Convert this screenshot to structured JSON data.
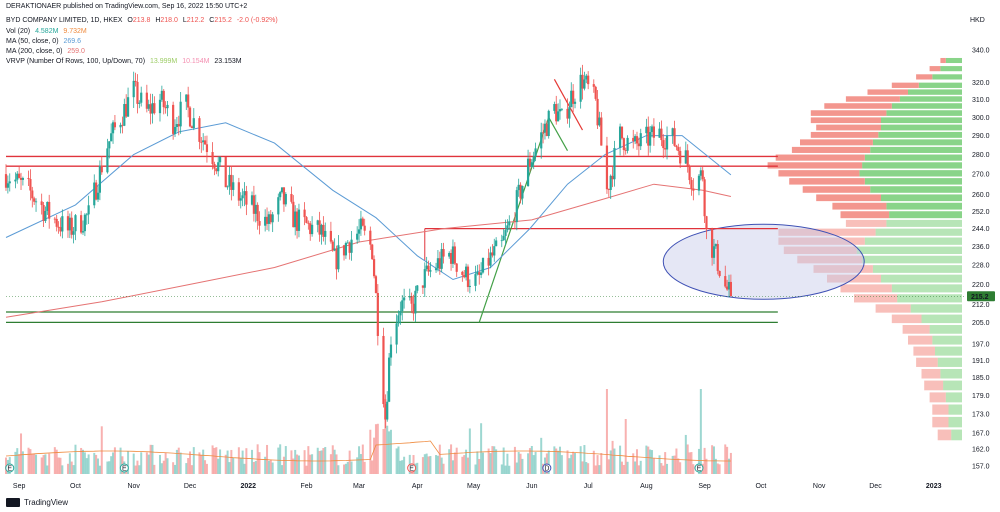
{
  "header": {
    "publisher": "DERAKTIONAER published on TradingView.com, Sep 16, 2022 15:50 UTC+2",
    "currency": "HKD"
  },
  "legend": {
    "symbol": {
      "name": "BYD COMPANY LIMITED, 1D, HKEX",
      "o_label": "O",
      "o": "213.8",
      "h_label": "H",
      "h": "218.0",
      "l_label": "L",
      "l": "212.2",
      "c_label": "C",
      "c": "215.2",
      "change": "-2.0 (-0.92%)"
    },
    "vol": {
      "label": "Vol (20)",
      "v1": "4.582M",
      "v2": "9.732M"
    },
    "ma50": {
      "label": "MA (50, close, 0)",
      "value": "269.6"
    },
    "ma200": {
      "label": "MA (200, close, 0)",
      "value": "259.0"
    },
    "vrvp": {
      "label": "VRVP (Number Of Rows, 100, Up/Down, 70)",
      "v1": "13.999M",
      "v2": "10.154M",
      "v3": "23.153M"
    }
  },
  "footer": {
    "brand": "TradingView"
  },
  "colors": {
    "up": "#26a69a",
    "down": "#ef5350",
    "ma50": "#5b9bd5",
    "ma200": "#e57373",
    "resistance": "#e0333b",
    "support": "#2e7d32",
    "ellipse_fill": "#c5cae9",
    "ellipse_stroke": "#3f51b5",
    "price_badge": "#2e7d32"
  },
  "chart_data": {
    "type": "candlestick",
    "title": "BYD COMPANY LIMITED, 1D, HKEX",
    "currency": "HKD",
    "last_price": "215.2",
    "y_ticks": [
      "340.0",
      "320.0",
      "310.0",
      "300.0",
      "290.0",
      "280.0",
      "270.0",
      "260.0",
      "252.0",
      "244.0",
      "236.0",
      "228.0",
      "220.0",
      "212.0",
      "205.0",
      "197.0",
      "191.0",
      "185.0",
      "179.0",
      "173.0",
      "167.0",
      "162.0",
      "157.0"
    ],
    "x_ticks": [
      "Sep",
      "Oct",
      "Nov",
      "Dec",
      "2022",
      "Feb",
      "Mar",
      "Apr",
      "May",
      "Jun",
      "Jul",
      "Aug",
      "Sep",
      "Oct",
      "Nov",
      "Dec",
      "2023"
    ],
    "x_range": [
      "2021-08-25",
      "2023-01-15"
    ],
    "y_scale": "log",
    "grid": false,
    "price_path": [
      [
        "2021-08-25",
        270
      ],
      [
        "2021-09-06",
        262
      ],
      [
        "2021-09-15",
        252
      ],
      [
        "2021-09-27",
        243
      ],
      [
        "2021-10-08",
        250
      ],
      [
        "2021-10-18",
        285
      ],
      [
        "2021-10-25",
        300
      ],
      [
        "2021-11-01",
        315
      ],
      [
        "2021-11-08",
        303
      ],
      [
        "2021-11-15",
        310
      ],
      [
        "2021-11-22",
        298
      ],
      [
        "2021-11-29",
        306
      ],
      [
        "2021-12-06",
        292
      ],
      [
        "2021-12-13",
        280
      ],
      [
        "2021-12-20",
        266
      ],
      [
        "2021-12-27",
        259
      ],
      [
        "2022-01-05",
        252
      ],
      [
        "2022-01-12",
        246
      ],
      [
        "2022-01-19",
        258
      ],
      [
        "2022-01-26",
        248
      ],
      [
        "2022-02-02",
        245
      ],
      [
        "2022-02-09",
        242
      ],
      [
        "2022-02-16",
        230
      ],
      [
        "2022-02-23",
        238
      ],
      [
        "2022-03-02",
        243
      ],
      [
        "2022-03-08",
        235
      ],
      [
        "2022-03-11",
        205
      ],
      [
        "2022-03-15",
        172
      ],
      [
        "2022-03-18",
        200
      ],
      [
        "2022-03-23",
        212
      ],
      [
        "2022-03-29",
        210
      ],
      [
        "2022-04-04",
        222
      ],
      [
        "2022-04-11",
        228
      ],
      [
        "2022-04-19",
        233
      ],
      [
        "2022-04-26",
        224
      ],
      [
        "2022-05-03",
        221
      ],
      [
        "2022-05-09",
        230
      ],
      [
        "2022-05-16",
        236
      ],
      [
        "2022-05-23",
        253
      ],
      [
        "2022-05-30",
        274
      ],
      [
        "2022-06-06",
        290
      ],
      [
        "2022-06-13",
        305
      ],
      [
        "2022-06-17",
        298
      ],
      [
        "2022-06-22",
        312
      ],
      [
        "2022-06-28",
        322
      ],
      [
        "2022-07-05",
        308
      ],
      [
        "2022-07-11",
        262
      ],
      [
        "2022-07-18",
        290
      ],
      [
        "2022-07-25",
        284
      ],
      [
        "2022-08-01",
        288
      ],
      [
        "2022-08-08",
        291
      ],
      [
        "2022-08-15",
        288
      ],
      [
        "2022-08-22",
        278
      ],
      [
        "2022-08-26",
        266
      ],
      [
        "2022-08-31",
        270
      ],
      [
        "2022-09-02",
        242
      ],
      [
        "2022-09-07",
        232
      ],
      [
        "2022-09-12",
        219
      ],
      [
        "2022-09-15",
        215.2
      ]
    ],
    "ma50": [
      [
        "2021-08-25",
        240
      ],
      [
        "2021-10-01",
        255
      ],
      [
        "2021-11-01",
        280
      ],
      [
        "2021-11-25",
        292
      ],
      [
        "2021-12-20",
        297
      ],
      [
        "2022-01-15",
        286
      ],
      [
        "2022-02-15",
        262
      ],
      [
        "2022-03-10",
        249
      ],
      [
        "2022-04-01",
        232
      ],
      [
        "2022-04-20",
        222
      ],
      [
        "2022-05-10",
        227
      ],
      [
        "2022-05-31",
        244
      ],
      [
        "2022-06-20",
        265
      ],
      [
        "2022-07-10",
        280
      ],
      [
        "2022-08-01",
        290
      ],
      [
        "2022-08-20",
        290
      ],
      [
        "2022-09-15",
        269.6
      ]
    ],
    "ma200": [
      [
        "2021-08-25",
        207
      ],
      [
        "2021-10-15",
        213
      ],
      [
        "2021-12-01",
        220
      ],
      [
        "2022-01-15",
        227
      ],
      [
        "2022-03-01",
        238
      ],
      [
        "2022-04-15",
        244
      ],
      [
        "2022-06-01",
        248
      ],
      [
        "2022-07-10",
        258
      ],
      [
        "2022-08-05",
        265
      ],
      [
        "2022-08-31",
        262
      ],
      [
        "2022-09-15",
        259
      ]
    ],
    "horizontal_lines": [
      {
        "name": "resistance-upper",
        "price": 279,
        "color": "#e0333b",
        "from": "2021-08-25",
        "to": "2022-10-10"
      },
      {
        "name": "resistance-lower",
        "price": 274,
        "color": "#e0333b",
        "from": "2021-08-25",
        "to": "2022-10-10"
      },
      {
        "name": "resistance-box",
        "price": 244,
        "color": "#e0333b",
        "from": "2022-04-05",
        "to": "2022-10-10"
      },
      {
        "name": "support-upper",
        "price": 209,
        "color": "#2e7d32",
        "from": "2021-08-25",
        "to": "2022-10-10"
      },
      {
        "name": "support-lower",
        "price": 205,
        "color": "#2e7d32",
        "from": "2021-08-25",
        "to": "2022-10-10"
      }
    ],
    "trend_lines": [
      {
        "name": "uptrend-line",
        "color": "#43a047",
        "points": [
          [
            "2022-05-04",
            205
          ],
          [
            "2022-06-10",
            300
          ],
          [
            "2022-06-20",
            282
          ]
        ]
      },
      {
        "name": "downtrend-line",
        "color": "#e53935",
        "points": [
          [
            "2022-06-13",
            322
          ],
          [
            "2022-06-28",
            293
          ]
        ]
      }
    ],
    "ellipse": {
      "center": [
        "2022-10-01",
        229
      ],
      "price_range": [
        214,
        246
      ],
      "date_range": [
        "2022-08-10",
        "2022-11-25"
      ]
    },
    "volume_profile_up": [
      [
        335,
        0.6
      ],
      [
        330,
        0.8
      ],
      [
        325,
        1.1
      ],
      [
        320,
        1.6
      ],
      [
        316,
        2.0
      ],
      [
        312,
        2.3
      ],
      [
        308,
        2.6
      ],
      [
        304,
        2.8
      ],
      [
        300,
        3.0
      ],
      [
        296,
        3.0
      ],
      [
        292,
        3.1
      ],
      [
        288,
        3.3
      ],
      [
        284,
        3.4
      ],
      [
        280,
        3.6
      ],
      [
        276,
        3.7
      ],
      [
        272,
        3.8
      ],
      [
        268,
        3.6
      ],
      [
        264,
        3.4
      ],
      [
        260,
        3.0
      ],
      [
        256,
        2.8
      ],
      [
        252,
        2.7
      ],
      [
        248,
        2.8
      ],
      [
        244,
        3.2
      ],
      [
        240,
        3.6
      ],
      [
        236,
        3.9
      ],
      [
        232,
        3.7
      ],
      [
        228,
        3.3
      ],
      [
        224,
        3.0
      ],
      [
        220,
        2.6
      ],
      [
        216,
        2.4
      ],
      [
        212,
        1.9
      ],
      [
        208,
        1.5
      ],
      [
        204,
        1.2
      ],
      [
        200,
        1.1
      ],
      [
        196,
        1.0
      ],
      [
        192,
        0.9
      ],
      [
        188,
        0.8
      ],
      [
        184,
        0.7
      ],
      [
        180,
        0.6
      ],
      [
        176,
        0.5
      ],
      [
        172,
        0.5
      ],
      [
        168,
        0.4
      ]
    ],
    "volume_profile_down": [
      [
        335,
        0.2
      ],
      [
        330,
        0.4
      ],
      [
        325,
        0.6
      ],
      [
        320,
        1.0
      ],
      [
        316,
        1.5
      ],
      [
        312,
        2.0
      ],
      [
        308,
        2.5
      ],
      [
        304,
        2.8
      ],
      [
        300,
        2.6
      ],
      [
        296,
        2.4
      ],
      [
        292,
        2.5
      ],
      [
        288,
        2.7
      ],
      [
        284,
        2.9
      ],
      [
        280,
        3.3
      ],
      [
        276,
        3.5
      ],
      [
        272,
        3.0
      ],
      [
        268,
        2.8
      ],
      [
        264,
        2.5
      ],
      [
        260,
        2.4
      ],
      [
        256,
        2.0
      ],
      [
        252,
        1.8
      ],
      [
        248,
        1.5
      ],
      [
        244,
        3.6
      ],
      [
        240,
        3.2
      ],
      [
        236,
        2.7
      ],
      [
        232,
        2.4
      ],
      [
        228,
        2.2
      ],
      [
        224,
        2.0
      ],
      [
        220,
        1.9
      ],
      [
        216,
        1.6
      ],
      [
        212,
        1.3
      ],
      [
        208,
        1.1
      ],
      [
        204,
        1.0
      ],
      [
        200,
        0.9
      ],
      [
        196,
        0.8
      ],
      [
        192,
        0.8
      ],
      [
        188,
        0.7
      ],
      [
        184,
        0.7
      ],
      [
        180,
        0.6
      ],
      [
        176,
        0.6
      ],
      [
        172,
        0.6
      ],
      [
        168,
        0.5
      ]
    ],
    "event_markers": [
      {
        "label": "E",
        "date": "2021-08-27",
        "color": "#26a69a"
      },
      {
        "label": "E",
        "date": "2021-10-27",
        "color": "#26a69a"
      },
      {
        "label": "E",
        "date": "2022-03-29",
        "color": "#ef5350"
      },
      {
        "label": "D",
        "date": "2022-06-09",
        "color": "#3f51b5"
      },
      {
        "label": "E",
        "date": "2022-08-29",
        "color": "#26a69a"
      }
    ]
  }
}
